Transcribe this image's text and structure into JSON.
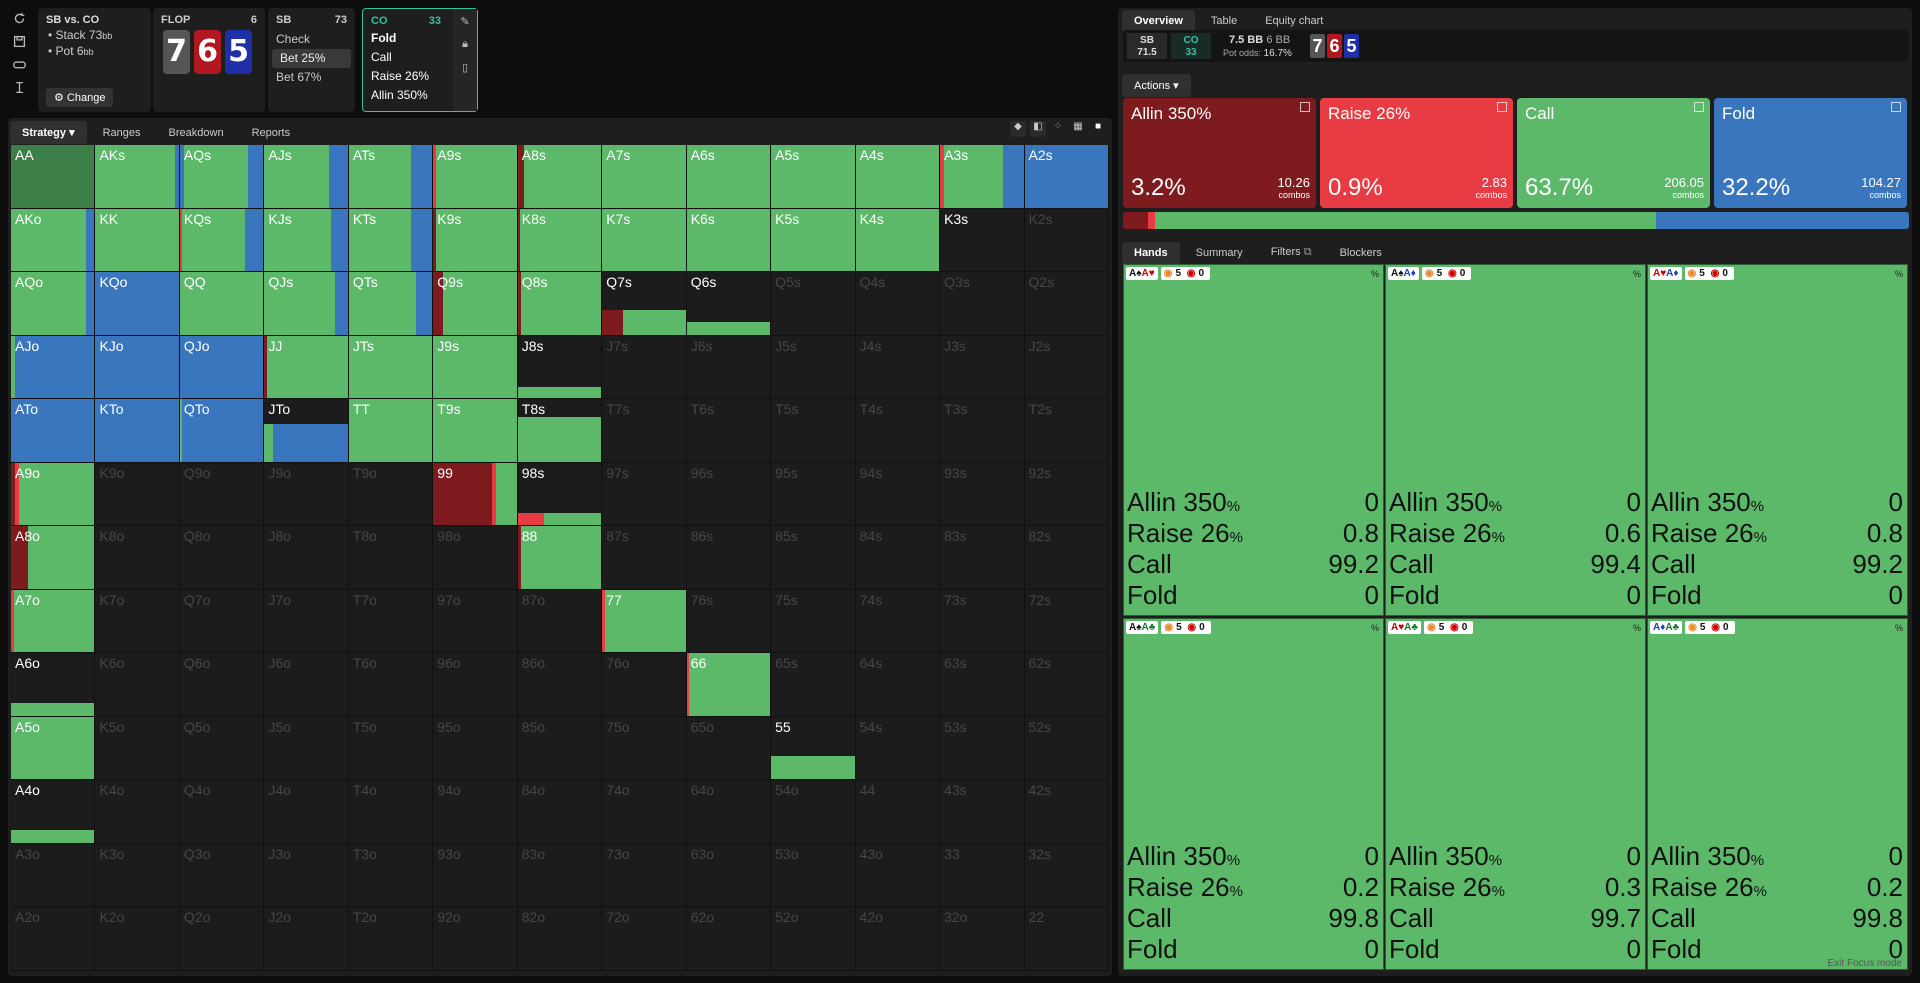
{
  "matchup": {
    "title": "SB vs. CO",
    "stack_label": "Stack",
    "stack": "73",
    "pot_label": "Pot",
    "pot": "6",
    "unit": "bb",
    "change": "Change"
  },
  "flop": {
    "label": "FLOP",
    "count": "6",
    "cards": [
      "7",
      "6",
      "5"
    ]
  },
  "sb_node": {
    "player": "SB",
    "stack": "73",
    "actions": [
      "Check",
      "Bet 25%",
      "Bet 67%"
    ]
  },
  "co_node": {
    "player": "CO",
    "stack": "33",
    "actions": [
      "Fold",
      "Call",
      "Raise 26%",
      "Allin 350%"
    ]
  },
  "left_tabs": [
    "Strategy",
    "Ranges",
    "Breakdown",
    "Reports"
  ],
  "right_tabs": [
    "Overview",
    "Table",
    "Equity chart"
  ],
  "overview": {
    "sb_label": "SB",
    "sb_value": "71.5",
    "co_label": "CO",
    "co_value": "33",
    "pot": "7.5 BB",
    "bet": "6 BB",
    "pot_odds_label": "Pot odds:",
    "pot_odds": "16.7%"
  },
  "actions_label": "Actions",
  "colors": {
    "allin": "#7d1b1f",
    "raise": "#e83b43",
    "call": "#5cb96a",
    "fold": "#3a76be"
  },
  "action_summary": [
    {
      "key": "allin",
      "label": "Allin 350%",
      "pct": "3.2%",
      "combos": "10.26",
      "combos_label": "combos",
      "freq": 3.2
    },
    {
      "key": "raise",
      "label": "Raise 26%",
      "pct": "0.9%",
      "combos": "2.83",
      "combos_label": "combos",
      "freq": 0.9
    },
    {
      "key": "call",
      "label": "Call",
      "pct": "63.7%",
      "combos": "206.05",
      "combos_label": "combos",
      "freq": 63.7
    },
    {
      "key": "fold",
      "label": "Fold",
      "pct": "32.2%",
      "combos": "104.27",
      "combos_label": "combos",
      "freq": 32.2
    }
  ],
  "matrix": [
    [
      "AA",
      "AKs",
      "AQs",
      "AJs",
      "ATs",
      "A9s",
      "A8s",
      "A7s",
      "A6s",
      "A5s",
      "A4s",
      "A3s",
      "A2s"
    ],
    [
      "AKo",
      "KK",
      "KQs",
      "KJs",
      "KTs",
      "K9s",
      "K8s",
      "K7s",
      "K6s",
      "K5s",
      "K4s",
      "K3s",
      "K2s"
    ],
    [
      "AQo",
      "KQo",
      "QQ",
      "QJs",
      "QTs",
      "Q9s",
      "Q8s",
      "Q7s",
      "Q6s",
      "Q5s",
      "Q4s",
      "Q3s",
      "Q2s"
    ],
    [
      "AJo",
      "KJo",
      "QJo",
      "JJ",
      "JTs",
      "J9s",
      "J8s",
      "J7s",
      "J6s",
      "J5s",
      "J4s",
      "J3s",
      "J2s"
    ],
    [
      "ATo",
      "KTo",
      "QTo",
      "JTo",
      "TT",
      "T9s",
      "T8s",
      "T7s",
      "T6s",
      "T5s",
      "T4s",
      "T3s",
      "T2s"
    ],
    [
      "A9o",
      "K9o",
      "Q9o",
      "J9o",
      "T9o",
      "99",
      "98s",
      "97s",
      "96s",
      "95s",
      "94s",
      "93s",
      "92s"
    ],
    [
      "A8o",
      "K8o",
      "Q8o",
      "J8o",
      "T8o",
      "98o",
      "88",
      "87s",
      "86s",
      "85s",
      "84s",
      "83s",
      "82s"
    ],
    [
      "A7o",
      "K7o",
      "Q7o",
      "J7o",
      "T7o",
      "97o",
      "87o",
      "77",
      "76s",
      "75s",
      "74s",
      "73s",
      "72s"
    ],
    [
      "A6o",
      "K6o",
      "Q6o",
      "J6o",
      "T6o",
      "96o",
      "86o",
      "76o",
      "66",
      "65s",
      "64s",
      "63s",
      "62s"
    ],
    [
      "A5o",
      "K5o",
      "Q5o",
      "J5o",
      "T5o",
      "95o",
      "85o",
      "75o",
      "65o",
      "55",
      "54s",
      "53s",
      "52s"
    ],
    [
      "A4o",
      "K4o",
      "Q4o",
      "J4o",
      "T4o",
      "94o",
      "84o",
      "74o",
      "64o",
      "54o",
      "44",
      "43s",
      "42s"
    ],
    [
      "A3o",
      "K3o",
      "Q3o",
      "J3o",
      "T3o",
      "93o",
      "83o",
      "73o",
      "63o",
      "53o",
      "43o",
      "33",
      "32s"
    ],
    [
      "A2o",
      "K2o",
      "Q2o",
      "J2o",
      "T2o",
      "92o",
      "82o",
      "72o",
      "62o",
      "52o",
      "42o",
      "32o",
      "22"
    ]
  ],
  "strategies": {
    "AA": {
      "h": 1,
      "s": [
        [
          "call",
          100
        ]
      ],
      "dark": true
    },
    "AKs": {
      "h": 1,
      "s": [
        [
          "call",
          95
        ],
        [
          "fold",
          5
        ]
      ]
    },
    "AQs": {
      "h": 1,
      "s": [
        [
          "fold",
          5
        ],
        [
          "call",
          77
        ],
        [
          "fold",
          18
        ]
      ]
    },
    "AJs": {
      "h": 1,
      "s": [
        [
          "call",
          78
        ],
        [
          "fold",
          22
        ]
      ]
    },
    "ATs": {
      "h": 1,
      "s": [
        [
          "call",
          75
        ],
        [
          "fold",
          25
        ]
      ]
    },
    "A9s": {
      "h": 1,
      "s": [
        [
          "raise",
          3
        ],
        [
          "call",
          97
        ]
      ]
    },
    "A8s": {
      "h": 1,
      "s": [
        [
          "allin",
          8
        ],
        [
          "call",
          92
        ]
      ]
    },
    "A7s": {
      "h": 1,
      "s": [
        [
          "call",
          100
        ]
      ]
    },
    "A6s": {
      "h": 1,
      "s": [
        [
          "call",
          100
        ]
      ]
    },
    "A5s": {
      "h": 1,
      "s": [
        [
          "call",
          100
        ]
      ]
    },
    "A4s": {
      "h": 1,
      "s": [
        [
          "call",
          100
        ]
      ]
    },
    "A3s": {
      "h": 1,
      "s": [
        [
          "raise",
          5
        ],
        [
          "call",
          70
        ],
        [
          "fold",
          25
        ]
      ]
    },
    "A2s": {
      "h": 1,
      "s": [
        [
          "fold",
          100
        ]
      ]
    },
    "AKo": {
      "h": 1,
      "s": [
        [
          "call",
          90
        ],
        [
          "fold",
          10
        ]
      ]
    },
    "KK": {
      "h": 1,
      "s": [
        [
          "call",
          100
        ]
      ]
    },
    "KQs": {
      "h": 1,
      "s": [
        [
          "raise",
          3
        ],
        [
          "call",
          75
        ],
        [
          "fold",
          22
        ]
      ]
    },
    "KJs": {
      "h": 1,
      "s": [
        [
          "call",
          80
        ],
        [
          "fold",
          20
        ]
      ]
    },
    "KTs": {
      "h": 1,
      "s": [
        [
          "call",
          75
        ],
        [
          "fold",
          25
        ]
      ]
    },
    "K9s": {
      "h": 1,
      "s": [
        [
          "allin",
          3
        ],
        [
          "call",
          97
        ]
      ]
    },
    "K8s": {
      "h": 1,
      "s": [
        [
          "allin",
          3
        ],
        [
          "call",
          97
        ]
      ]
    },
    "K7s": {
      "h": 1,
      "s": [
        [
          "call",
          100
        ]
      ]
    },
    "K6s": {
      "h": 1,
      "s": [
        [
          "call",
          100
        ]
      ]
    },
    "K5s": {
      "h": 1,
      "s": [
        [
          "call",
          100
        ]
      ]
    },
    "K4s": {
      "h": 1,
      "s": [
        [
          "call",
          100
        ]
      ]
    },
    "K3s": {
      "h": 0,
      "s": []
    },
    "AQo": {
      "h": 1,
      "s": [
        [
          "call",
          90
        ],
        [
          "fold",
          10
        ]
      ]
    },
    "KQo": {
      "h": 1,
      "s": [
        [
          "fold",
          100
        ]
      ]
    },
    "QQ": {
      "h": 1,
      "s": [
        [
          "call",
          100
        ]
      ]
    },
    "QJs": {
      "h": 1,
      "s": [
        [
          "call",
          85
        ],
        [
          "fold",
          15
        ]
      ]
    },
    "QTs": {
      "h": 1,
      "s": [
        [
          "call",
          80
        ],
        [
          "fold",
          20
        ]
      ]
    },
    "Q9s": {
      "h": 1,
      "s": [
        [
          "allin",
          12
        ],
        [
          "call",
          88
        ]
      ]
    },
    "Q8s": {
      "h": 1,
      "s": [
        [
          "allin",
          4
        ],
        [
          "call",
          96
        ]
      ]
    },
    "Q7s": {
      "h": 0.4,
      "s": [
        [
          "allin",
          25
        ],
        [
          "call",
          75
        ]
      ]
    },
    "Q6s": {
      "h": 0.2,
      "s": [
        [
          "call",
          100
        ]
      ]
    },
    "AJo": {
      "h": 1,
      "s": [
        [
          "call",
          5
        ],
        [
          "fold",
          95
        ]
      ]
    },
    "KJo": {
      "h": 1,
      "s": [
        [
          "fold",
          100
        ]
      ]
    },
    "QJo": {
      "h": 1,
      "s": [
        [
          "fold",
          100
        ]
      ]
    },
    "JJ": {
      "h": 1,
      "s": [
        [
          "allin",
          3
        ],
        [
          "call",
          97
        ]
      ]
    },
    "JTs": {
      "h": 1,
      "s": [
        [
          "call",
          100
        ]
      ]
    },
    "J9s": {
      "h": 1,
      "s": [
        [
          "call",
          100
        ]
      ]
    },
    "J8s": {
      "h": 0.18,
      "s": [
        [
          "call",
          100
        ]
      ]
    },
    "ATo": {
      "h": 1,
      "s": [
        [
          "fold",
          100
        ]
      ]
    },
    "KTo": {
      "h": 1,
      "s": [
        [
          "fold",
          100
        ]
      ]
    },
    "QTo": {
      "h": 1,
      "s": [
        [
          "call",
          3
        ],
        [
          "fold",
          97
        ]
      ]
    },
    "JTo": {
      "h": 0.6,
      "s": [
        [
          "call",
          10
        ],
        [
          "fold",
          90
        ]
      ]
    },
    "TT": {
      "h": 1,
      "s": [
        [
          "call",
          100
        ]
      ]
    },
    "T9s": {
      "h": 1,
      "s": [
        [
          "call",
          100
        ]
      ]
    },
    "T8s": {
      "h": 0.72,
      "s": [
        [
          "call",
          100
        ]
      ]
    },
    "A9o": {
      "h": 1,
      "s": [
        [
          "allin",
          5
        ],
        [
          "raise",
          5
        ],
        [
          "call",
          90
        ]
      ]
    },
    "99": {
      "h": 1,
      "s": [
        [
          "allin",
          70
        ],
        [
          "raise",
          5
        ],
        [
          "call",
          25
        ]
      ]
    },
    "98s": {
      "h": 0.2,
      "s": [
        [
          "raise",
          32
        ],
        [
          "call",
          68
        ]
      ]
    },
    "A8o": {
      "h": 1,
      "s": [
        [
          "allin",
          20
        ],
        [
          "call",
          80
        ]
      ]
    },
    "88": {
      "h": 1,
      "s": [
        [
          "allin",
          4
        ],
        [
          "call",
          96
        ]
      ]
    },
    "A7o": {
      "h": 1,
      "s": [
        [
          "raise",
          4
        ],
        [
          "call",
          96
        ]
      ]
    },
    "77": {
      "h": 1,
      "s": [
        [
          "raise",
          3
        ],
        [
          "call",
          97
        ]
      ]
    },
    "A6o": {
      "h": 0.2,
      "s": [
        [
          "call",
          100
        ]
      ]
    },
    "66": {
      "h": 1,
      "s": [
        [
          "raise",
          3
        ],
        [
          "call",
          97
        ]
      ]
    },
    "A5o": {
      "h": 1,
      "s": [
        [
          "call",
          100
        ]
      ]
    },
    "55": {
      "h": 0.38,
      "s": [
        [
          "call",
          100
        ]
      ]
    },
    "A4o": {
      "h": 0.2,
      "s": [
        [
          "call",
          100
        ]
      ]
    }
  },
  "highlighted_labels": [
    "A6o",
    "A4o",
    "K3s",
    "Q7s",
    "Q6s",
    "J8s",
    "T8s",
    "JTo",
    "98s",
    "55",
    "99",
    "88",
    "77",
    "66"
  ],
  "hands_tabs": [
    "Hands",
    "Summary",
    "Filters",
    "Blockers"
  ],
  "hand_cards": [
    {
      "cards": [
        "A♠",
        "A♥"
      ],
      "c": [
        "#111",
        "#c00"
      ],
      "n5": "5",
      "n0": "0",
      "pct": "%",
      "vals": [
        "0",
        "0.8",
        "99.2",
        "0"
      ]
    },
    {
      "cards": [
        "A♠",
        "A♦"
      ],
      "c": [
        "#111",
        "#1a3fb0"
      ],
      "n5": "5",
      "n0": "0",
      "pct": "%",
      "vals": [
        "0",
        "0.6",
        "99.4",
        "0"
      ]
    },
    {
      "cards": [
        "A♥",
        "A♦"
      ],
      "c": [
        "#c00",
        "#1a3fb0"
      ],
      "n5": "5",
      "n0": "0",
      "pct": "%",
      "vals": [
        "0",
        "0.8",
        "99.2",
        "0"
      ]
    },
    {
      "cards": [
        "A♠",
        "A♣"
      ],
      "c": [
        "#111",
        "#117a2a"
      ],
      "n5": "5",
      "n0": "0",
      "pct": "%",
      "vals": [
        "0",
        "0.2",
        "99.8",
        "0"
      ]
    },
    {
      "cards": [
        "A♥",
        "A♣"
      ],
      "c": [
        "#c00",
        "#117a2a"
      ],
      "n5": "5",
      "n0": "0",
      "pct": "%",
      "vals": [
        "0",
        "0.3",
        "99.7",
        "0"
      ]
    },
    {
      "cards": [
        "A♦",
        "A♣"
      ],
      "c": [
        "#1a3fb0",
        "#117a2a"
      ],
      "n5": "5",
      "n0": "0",
      "pct": "%",
      "vals": [
        "0",
        "0.2",
        "99.8",
        "0"
      ]
    }
  ],
  "hand_row_labels": [
    [
      "Allin 350",
      "%"
    ],
    [
      "Raise 26",
      "%"
    ],
    [
      "Call",
      ""
    ],
    [
      "Fold",
      ""
    ]
  ],
  "exit_focus": "Exit Focus mode"
}
